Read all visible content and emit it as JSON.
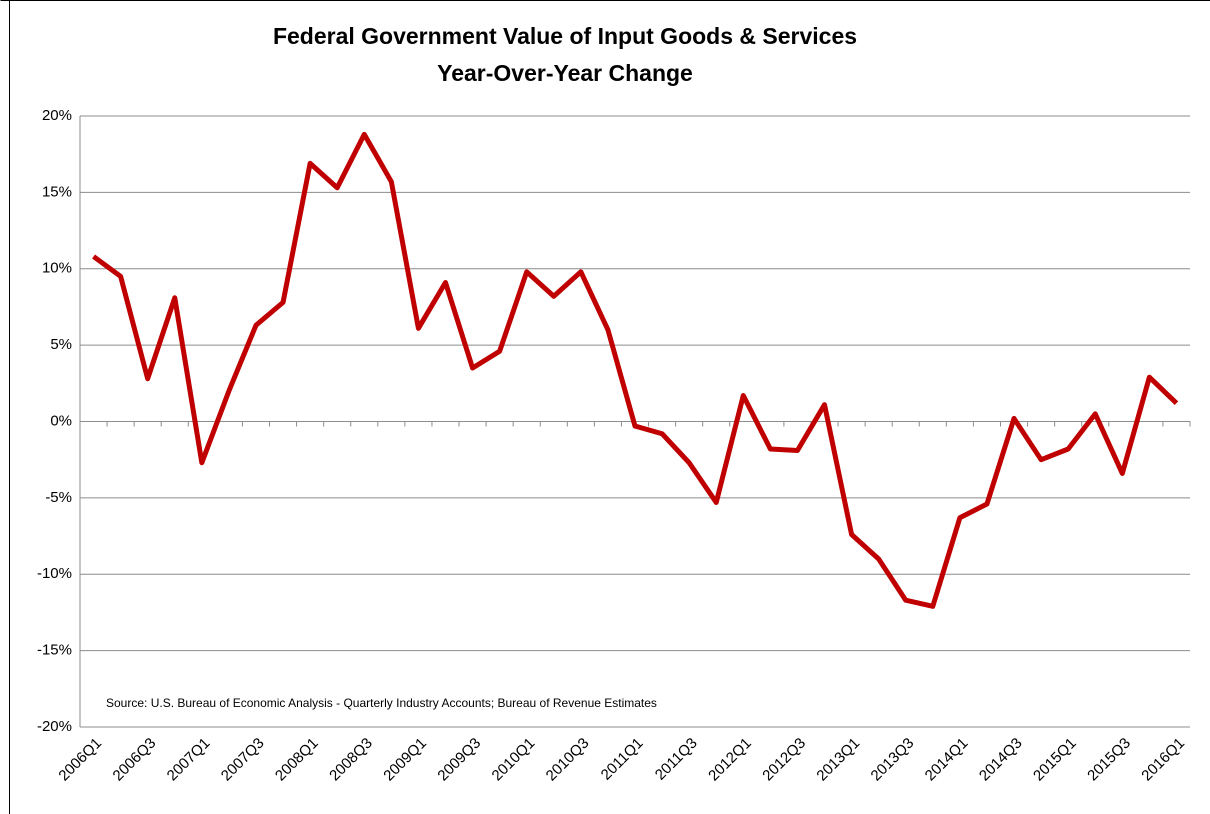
{
  "chart_data": {
    "type": "line",
    "title": "Federal Government Value of Input Goods & Services",
    "subtitle": "Year-Over-Year Change",
    "source": "Source:  U.S. Bureau of Economic Analysis - Quarterly Industry Accounts; Bureau of Revenue Estimates",
    "categories": [
      "2006Q1",
      null,
      "2006Q3",
      null,
      "2007Q1",
      null,
      "2007Q3",
      null,
      "2008Q1",
      null,
      "2008Q3",
      null,
      "2009Q1",
      null,
      "2009Q3",
      null,
      "2010Q1",
      null,
      "2010Q3",
      null,
      "2011Q1",
      null,
      "2011Q3",
      null,
      "2012Q1",
      null,
      "2012Q3",
      null,
      "2013Q1",
      null,
      "2013Q3",
      null,
      "2014Q1",
      null,
      "2014Q3",
      null,
      "2015Q1",
      null,
      "2015Q3",
      null,
      "2016Q1"
    ],
    "series": [
      {
        "color": "#c00000",
        "values": [
          10.8,
          9.5,
          2.8,
          8.1,
          -2.7,
          2.0,
          6.3,
          7.8,
          16.9,
          15.3,
          18.8,
          15.7,
          6.1,
          9.1,
          3.5,
          4.6,
          9.8,
          8.2,
          9.8,
          6.0,
          -0.3,
          -0.8,
          -2.7,
          -5.3,
          1.7,
          -1.8,
          -1.9,
          1.1,
          -7.4,
          -9.0,
          -11.7,
          -12.1,
          -6.3,
          -5.4,
          0.2,
          -2.5,
          -1.8,
          0.5,
          -3.4,
          2.9,
          1.2
        ]
      }
    ],
    "ylim": [
      -20,
      20
    ],
    "yticks": [
      {
        "value": -20,
        "label": "-20%"
      },
      {
        "value": -15,
        "label": "-15%"
      },
      {
        "value": -10,
        "label": "-10%"
      },
      {
        "value": -5,
        "label": "-5%"
      },
      {
        "value": 0,
        "label": "0%"
      },
      {
        "value": 5,
        "label": "5%"
      },
      {
        "value": 10,
        "label": "10%"
      },
      {
        "value": 15,
        "label": "15%"
      },
      {
        "value": 20,
        "label": "20%"
      }
    ],
    "grid": true
  }
}
